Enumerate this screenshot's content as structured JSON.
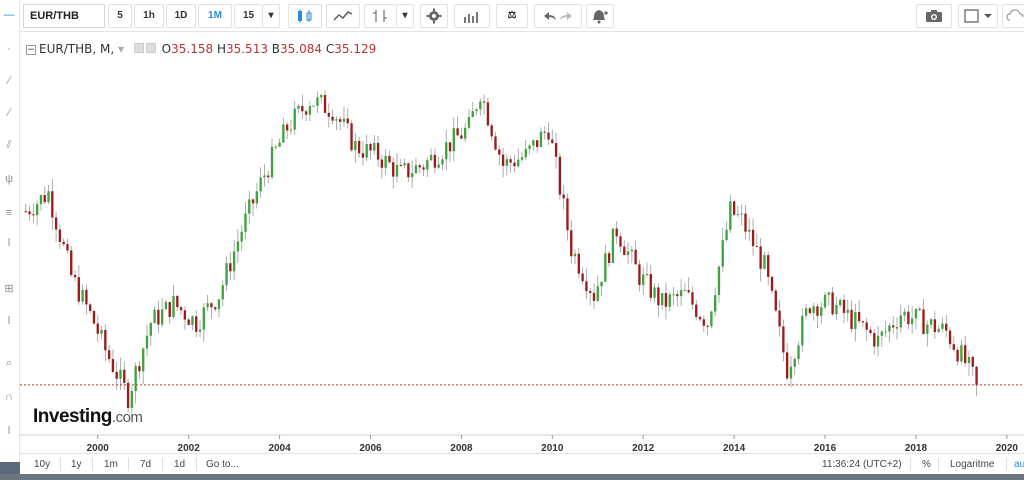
{
  "toolbar": {
    "symbol": "EUR/THB",
    "intervals": [
      "5",
      "1h",
      "1D",
      "1M",
      "15"
    ],
    "active_interval": "1M"
  },
  "legend": {
    "title": "EUR/THB, M,",
    "open_label": "O",
    "open": "35.158",
    "high_label": "H",
    "high": "35.513",
    "low_label": "B",
    "low": "35.084",
    "close_label": "C",
    "close": "35.129"
  },
  "watermark": {
    "brand": "Investing",
    "suffix": ".com"
  },
  "bottombar": {
    "ranges": [
      "10y",
      "1y",
      "1m",
      "7d",
      "1d"
    ],
    "goto": "Go to...",
    "time": "11:36:24 (UTC+2)",
    "percent": "%",
    "log": "Logaritme",
    "auto": "au"
  },
  "colors": {
    "up": "#3fa33f",
    "down": "#9e1b1b",
    "price_line": "#c0392b",
    "accent": "#2c8dd6"
  },
  "chart_data": {
    "type": "candlestick",
    "x_tick_labels": [
      "2000",
      "2002",
      "2004",
      "2006",
      "2008",
      "2010",
      "2012",
      "2014",
      "2016",
      "2018",
      "2020"
    ],
    "series": [
      {
        "name": "EUR/THB",
        "interval": "monthly",
        "x": [
          "1998-06",
          "1998-12",
          "1999-06",
          "1999-12",
          "2000-03",
          "2000-09",
          "2001-03",
          "2001-09",
          "2002-03",
          "2002-09",
          "2003-03",
          "2003-09",
          "2004-03",
          "2004-09",
          "2005-03",
          "2005-09",
          "2006-03",
          "2006-09",
          "2007-03",
          "2007-09",
          "2008-03",
          "2008-06",
          "2008-12",
          "2009-06",
          "2009-12",
          "2010-06",
          "2010-12",
          "2011-06",
          "2011-12",
          "2012-06",
          "2012-12",
          "2013-06",
          "2013-12",
          "2014-03",
          "2014-09",
          "2015-03",
          "2015-09",
          "2016-03",
          "2016-09",
          "2017-03",
          "2017-09",
          "2018-03",
          "2018-09",
          "2019-03",
          "2019-05"
        ],
        "close": [
          44.5,
          45.5,
          41.0,
          38.5,
          37.0,
          34.5,
          38.5,
          39.5,
          38.5,
          40.0,
          43.5,
          46.5,
          49.0,
          50.5,
          50.0,
          48.0,
          47.5,
          46.5,
          47.0,
          48.0,
          49.0,
          51.0,
          47.0,
          47.5,
          49.0,
          42.5,
          40.0,
          43.5,
          41.0,
          39.5,
          40.0,
          38.5,
          44.5,
          44.0,
          41.5,
          36.0,
          39.5,
          39.5,
          38.5,
          37.5,
          39.0,
          38.5,
          38.0,
          36.0,
          35.129
        ]
      }
    ],
    "last_close": 35.129,
    "y_range": [
      33.5,
      52.5
    ],
    "x_range": [
      "1998-05",
      "2020-05"
    ]
  }
}
